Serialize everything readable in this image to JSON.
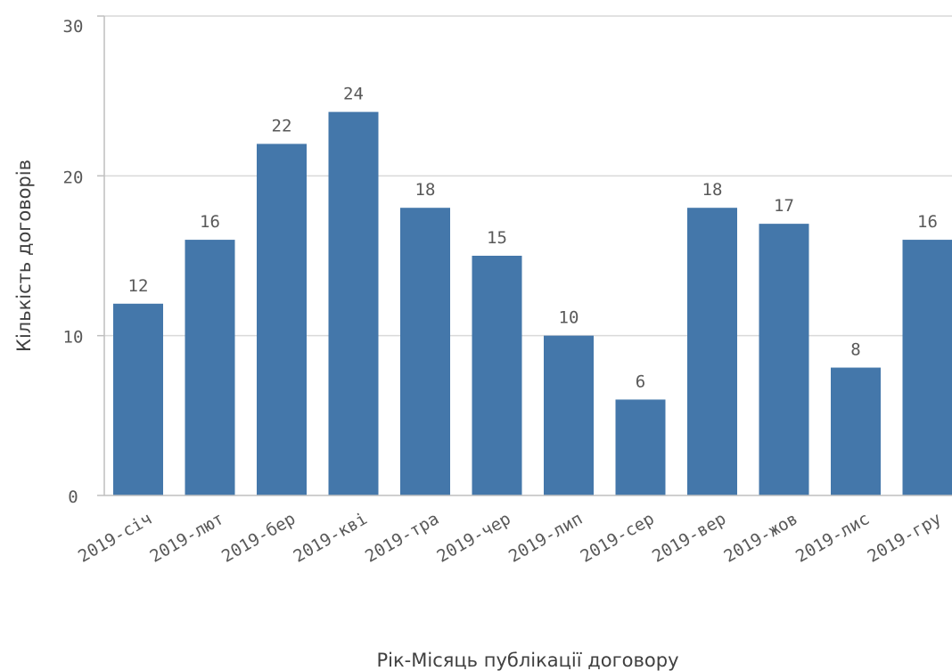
{
  "chart_data": {
    "type": "bar",
    "categories": [
      "2019-січ",
      "2019-лют",
      "2019-бер",
      "2019-кві",
      "2019-тра",
      "2019-чер",
      "2019-лип",
      "2019-сер",
      "2019-вер",
      "2019-жов",
      "2019-лис",
      "2019-гру"
    ],
    "values": [
      12,
      16,
      22,
      24,
      18,
      15,
      10,
      6,
      18,
      17,
      8,
      16
    ],
    "xlabel": "Рік-Місяць публікації договору",
    "ylabel": "Кількість договорів",
    "ylim": [
      0,
      30
    ],
    "yticks": [
      0,
      10,
      20,
      30
    ],
    "grid": true,
    "data_labels": true,
    "bar_color": "#4477aa",
    "grid_color": "#d9d9d9",
    "axis_color": "#bfbfbf"
  }
}
